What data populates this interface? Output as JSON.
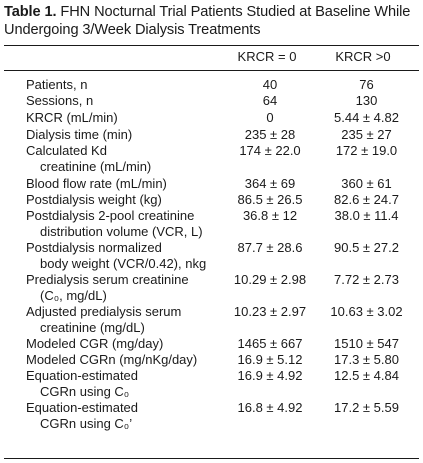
{
  "table": {
    "title_bold": "Table 1.",
    "title_text": " FHN Nocturnal Trial Patients Studied at Baseline While Undergoing 3/Week Dialysis Treatments",
    "col1": "KRCR = 0",
    "col2": "KRCR >0",
    "rows": [
      {
        "l1": "Patients, n",
        "l2": "",
        "v1": "40",
        "v2": "76"
      },
      {
        "l1": "Sessions, n",
        "l2": "",
        "v1": "64",
        "v2": "130"
      },
      {
        "l1": "KRCR (mL/min)",
        "l2": "",
        "v1": "0",
        "v2": "5.44 ± 4.82"
      },
      {
        "l1": "Dialysis time (min)",
        "l2": "",
        "v1": "235 ± 28",
        "v2": "235 ± 27"
      },
      {
        "l1": "Calculated Kd",
        "l2": "creatinine (mL/min)",
        "v1": "174 ± 22.0",
        "v2": "172 ± 19.0"
      },
      {
        "l1": "Blood flow rate (mL/min)",
        "l2": "",
        "v1": "364 ± 69",
        "v2": "360 ± 61"
      },
      {
        "l1": "Postdialysis weight (kg)",
        "l2": "",
        "v1": "86.5 ± 26.5",
        "v2": "82.6 ± 24.7"
      },
      {
        "l1": "Postdialysis 2-pool creatinine",
        "l2": "distribution volume (VCR, L)",
        "v1": "36.8 ± 12",
        "v2": "38.0 ± 11.4"
      },
      {
        "l1": "Postdialysis normalized",
        "l2": "body weight (VCR/0.42), nkg",
        "v1": "87.7 ± 28.6",
        "v2": "90.5 ± 27.2"
      },
      {
        "l1": "Predialysis serum creatinine",
        "l2": "(C₀, mg/dL)",
        "v1": "10.29 ± 2.98",
        "v2": "7.72 ± 2.73"
      },
      {
        "l1": "Adjusted predialysis serum",
        "l2": "creatinine (mg/dL)",
        "v1": "10.23 ± 2.97",
        "v2": "10.63 ± 3.02"
      },
      {
        "l1": "Modeled CGR (mg/day)",
        "l2": "",
        "v1": "1465 ± 667",
        "v2": "1510 ± 547"
      },
      {
        "l1": "Modeled CGRn (mg/nKg/day)",
        "l2": "",
        "v1": "16.9 ± 5.12",
        "v2": "17.3 ± 5.80"
      },
      {
        "l1": "Equation-estimated",
        "l2": "CGRn using C₀",
        "v1": "16.9 ± 4.92",
        "v2": "12.5 ± 4.84"
      },
      {
        "l1": "Equation-estimated",
        "l2": "CGRn using C₀’",
        "v1": "16.8 ± 4.92",
        "v2": "17.2 ± 5.59"
      }
    ]
  }
}
